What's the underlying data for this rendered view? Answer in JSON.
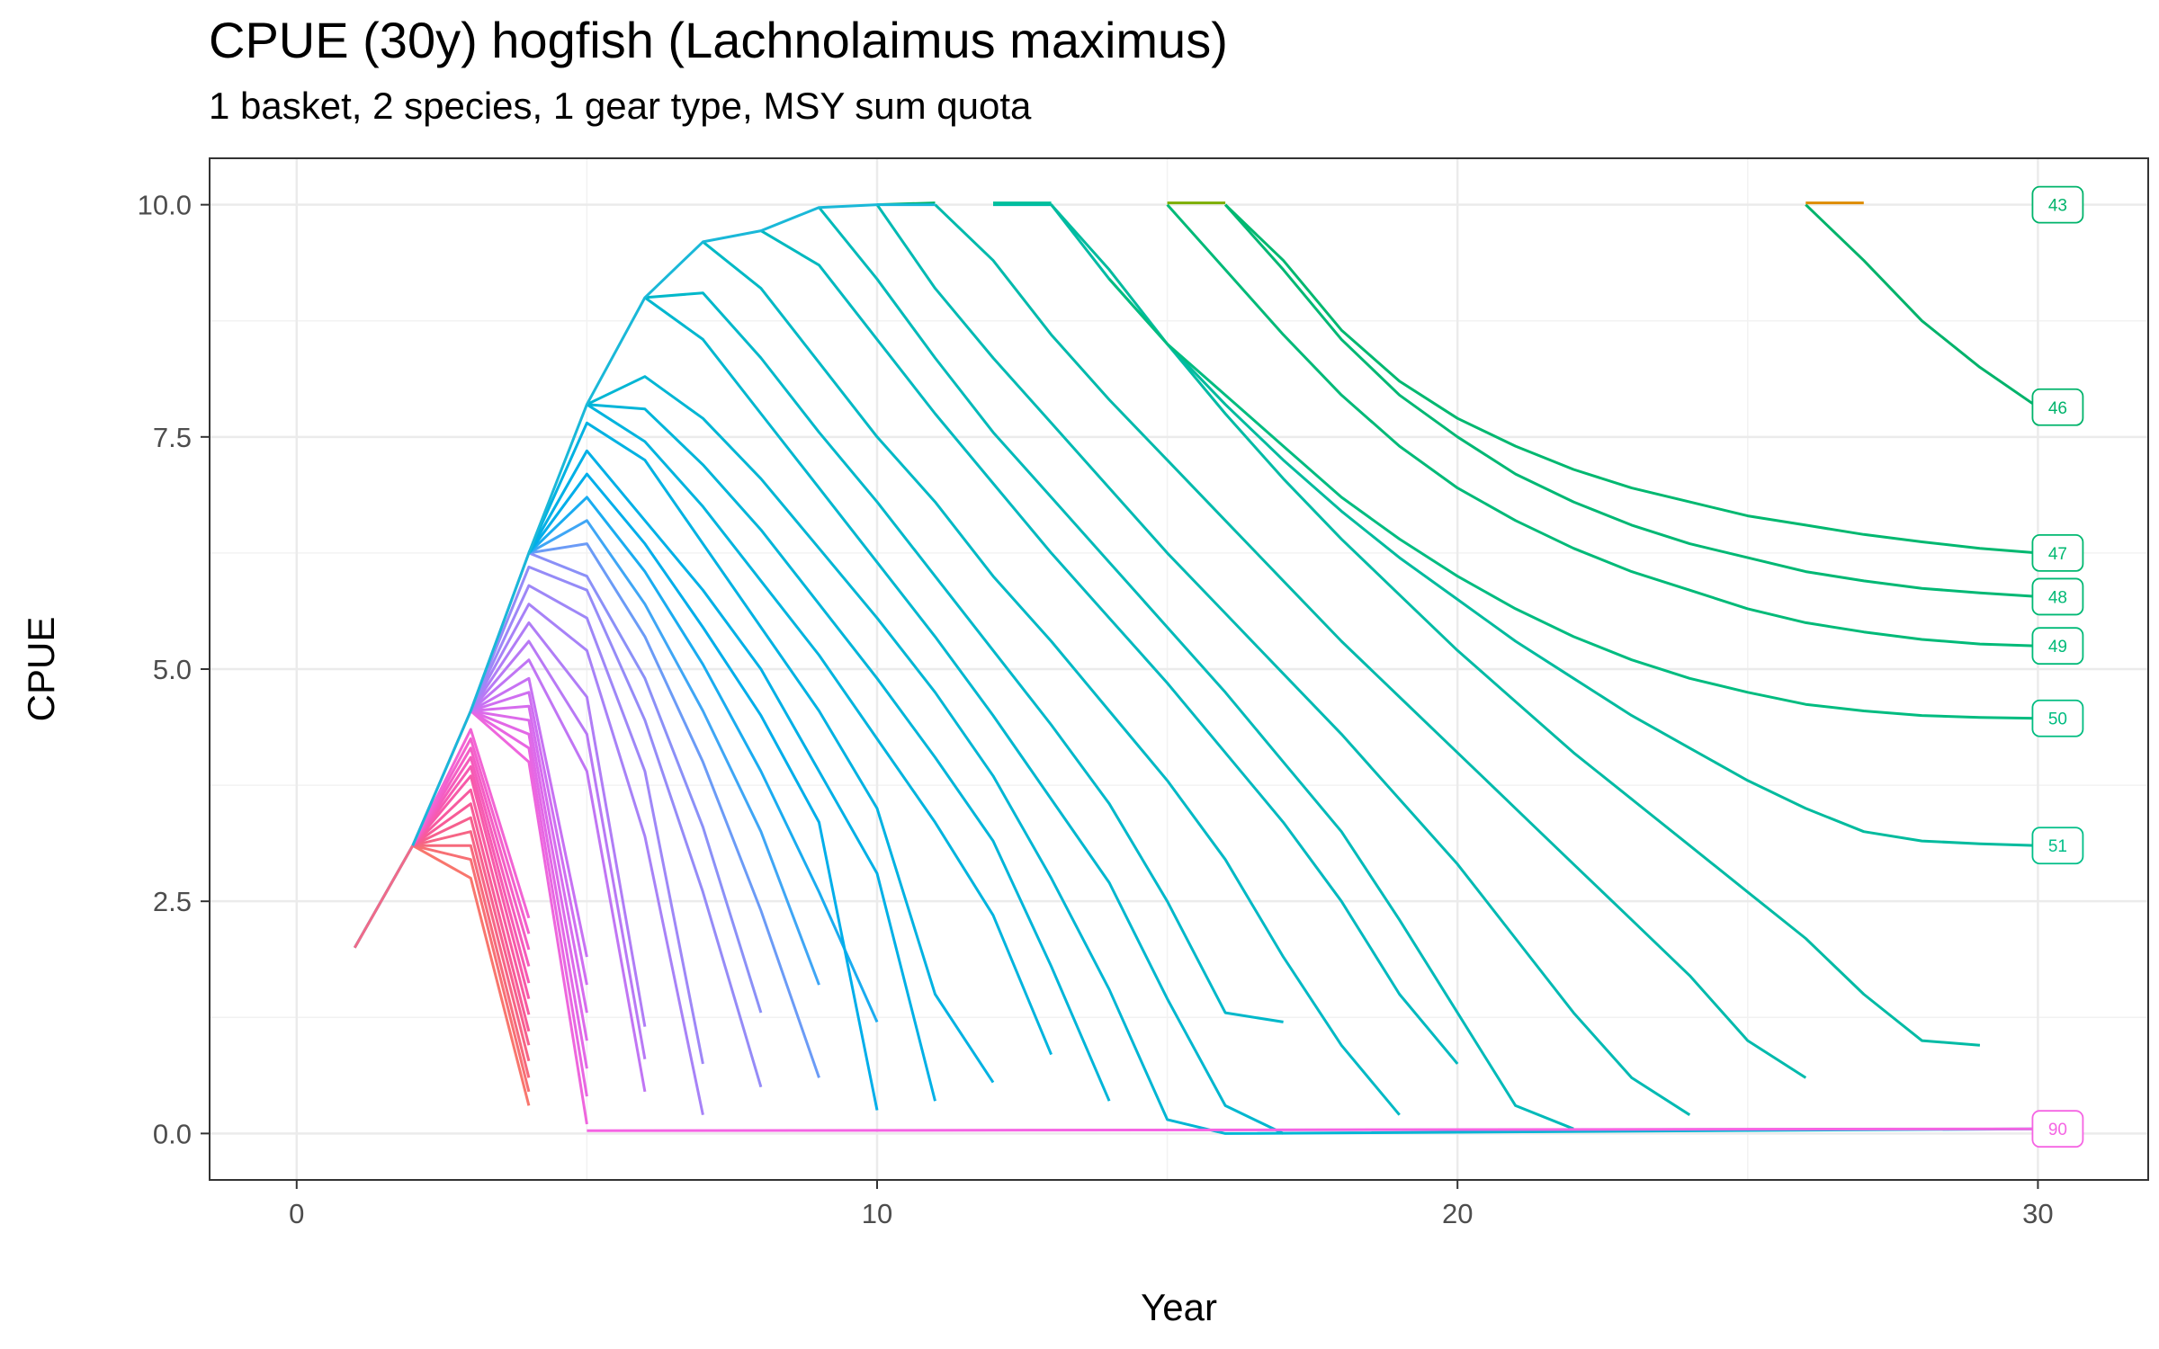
{
  "chart_data": {
    "type": "line",
    "title": "CPUE (30y) hogfish (Lachnolaimus maximus)",
    "subtitle": "1 basket, 2 species, 1 gear type, MSY sum quota",
    "xlabel": "Year",
    "ylabel": "CPUE",
    "xlim": [
      -1.5,
      31.9
    ],
    "ylim": [
      -0.5,
      10.5
    ],
    "xticks": [
      0,
      10,
      20,
      30
    ],
    "yticks": [
      0.0,
      2.5,
      5.0,
      7.5,
      10.0
    ],
    "ytick_labels": [
      "0.0",
      "2.5",
      "5.0",
      "7.5",
      "10.0"
    ],
    "grid": true,
    "legend": "none",
    "trunk": {
      "x": [
        1,
        2,
        3,
        4,
        5,
        6,
        7,
        8,
        9,
        10,
        11
      ],
      "y": [
        2.0,
        3.1,
        4.55,
        6.25,
        7.85,
        9.0,
        9.6,
        9.72,
        9.97,
        10.0,
        10.0
      ]
    },
    "end_labels": [
      {
        "label": "43",
        "x": 30,
        "y": 10.0,
        "color": "#00b36b"
      },
      {
        "label": "46",
        "x": 30,
        "y": 7.82,
        "color": "#00b36b"
      },
      {
        "label": "47",
        "x": 30,
        "y": 6.25,
        "color": "#00b870"
      },
      {
        "label": "48",
        "x": 30,
        "y": 5.78,
        "color": "#00b874"
      },
      {
        "label": "49",
        "x": 30,
        "y": 5.25,
        "color": "#00ba78"
      },
      {
        "label": "50",
        "x": 30,
        "y": 4.47,
        "color": "#00bc80"
      },
      {
        "label": "51",
        "x": 30,
        "y": 3.1,
        "color": "#00be88"
      },
      {
        "label": "90",
        "x": 30,
        "y": 0.05,
        "color": "#f564e3"
      }
    ],
    "series": [
      {
        "color": "#f8766d",
        "x": [
          1,
          2,
          3,
          4
        ],
        "y": [
          2.0,
          3.1,
          2.75,
          0.3
        ]
      },
      {
        "color": "#f77074",
        "x": [
          2,
          3,
          4
        ],
        "y": [
          3.1,
          2.95,
          0.45
        ]
      },
      {
        "color": "#f66a7c",
        "x": [
          2,
          3,
          4
        ],
        "y": [
          3.1,
          3.1,
          0.6
        ]
      },
      {
        "color": "#f66585",
        "x": [
          2,
          3,
          4
        ],
        "y": [
          3.1,
          3.25,
          0.78
        ]
      },
      {
        "color": "#f6608e",
        "x": [
          2,
          3,
          4
        ],
        "y": [
          3.1,
          3.4,
          0.95
        ]
      },
      {
        "color": "#f75c97",
        "x": [
          2,
          3,
          4
        ],
        "y": [
          3.1,
          3.55,
          1.1
        ]
      },
      {
        "color": "#f75ba0",
        "x": [
          2,
          3,
          4
        ],
        "y": [
          3.1,
          3.7,
          1.28
        ]
      },
      {
        "color": "#f75aa9",
        "x": [
          2,
          3,
          4
        ],
        "y": [
          3.1,
          3.85,
          1.45
        ]
      },
      {
        "color": "#f65bb2",
        "x": [
          2,
          3,
          4
        ],
        "y": [
          3.1,
          3.95,
          1.62
        ]
      },
      {
        "color": "#f55cbb",
        "x": [
          2,
          3,
          4
        ],
        "y": [
          3.1,
          4.05,
          1.8
        ]
      },
      {
        "color": "#f45ec4",
        "x": [
          2,
          3,
          4
        ],
        "y": [
          3.1,
          4.15,
          1.98
        ]
      },
      {
        "color": "#f361cc",
        "x": [
          2,
          3,
          4
        ],
        "y": [
          3.1,
          4.25,
          2.15
        ]
      },
      {
        "color": "#f264d4",
        "x": [
          2,
          3,
          4
        ],
        "y": [
          3.1,
          4.35,
          2.32
        ]
      },
      {
        "color": "#ee66dd",
        "x": [
          2,
          3,
          4,
          5
        ],
        "y": [
          3.1,
          4.55,
          4.0,
          0.1
        ]
      },
      {
        "color": "#e866e2",
        "x": [
          3,
          4,
          5
        ],
        "y": [
          4.55,
          4.15,
          0.4
        ]
      },
      {
        "color": "#e268e6",
        "x": [
          3,
          4,
          5
        ],
        "y": [
          4.55,
          4.3,
          0.7
        ]
      },
      {
        "color": "#dc6aea",
        "x": [
          3,
          4,
          5
        ],
        "y": [
          4.55,
          4.45,
          1.0
        ]
      },
      {
        "color": "#d66cee",
        "x": [
          3,
          4,
          5
        ],
        "y": [
          4.55,
          4.6,
          1.3
        ]
      },
      {
        "color": "#cf6ff1",
        "x": [
          3,
          4,
          5
        ],
        "y": [
          4.55,
          4.75,
          1.6
        ]
      },
      {
        "color": "#c772f3",
        "x": [
          3,
          4,
          5
        ],
        "y": [
          4.55,
          4.9,
          1.9
        ]
      },
      {
        "color": "#c075f4",
        "x": [
          3,
          4,
          5,
          6
        ],
        "y": [
          4.55,
          5.1,
          3.9,
          0.45
        ]
      },
      {
        "color": "#b879f5",
        "x": [
          3,
          4,
          5,
          6
        ],
        "y": [
          4.55,
          5.3,
          4.3,
          0.8
        ]
      },
      {
        "color": "#b07df6",
        "x": [
          3,
          4,
          5,
          6
        ],
        "y": [
          4.55,
          5.5,
          4.7,
          1.15
        ]
      },
      {
        "color": "#a782f7",
        "x": [
          3,
          4,
          5,
          6,
          7
        ],
        "y": [
          4.55,
          5.7,
          5.2,
          3.2,
          0.2
        ]
      },
      {
        "color": "#9e87f7",
        "x": [
          3,
          4,
          5,
          6,
          7
        ],
        "y": [
          4.55,
          5.9,
          5.55,
          3.9,
          0.75
        ]
      },
      {
        "color": "#958bf7",
        "x": [
          3,
          4,
          5,
          6,
          7,
          8
        ],
        "y": [
          4.55,
          6.1,
          5.85,
          4.45,
          2.6,
          0.5
        ]
      },
      {
        "color": "#8b90f7",
        "x": [
          3,
          4,
          5,
          6,
          7,
          8
        ],
        "y": [
          4.55,
          6.25,
          6.0,
          4.9,
          3.3,
          1.3
        ]
      },
      {
        "color": "#6b9bf6",
        "x": [
          4,
          5,
          6,
          7,
          8,
          9
        ],
        "y": [
          6.25,
          6.35,
          5.35,
          4.0,
          2.4,
          0.6
        ]
      },
      {
        "color": "#3fa6f5",
        "x": [
          4,
          5,
          6,
          7,
          8,
          9
        ],
        "y": [
          6.25,
          6.6,
          5.7,
          4.55,
          3.25,
          1.6
        ]
      },
      {
        "color": "#1aacf0",
        "x": [
          4,
          5,
          6,
          7,
          8,
          9,
          10
        ],
        "y": [
          6.25,
          6.85,
          6.05,
          5.05,
          3.9,
          2.6,
          1.2
        ]
      },
      {
        "color": "#00aeea",
        "x": [
          4,
          5,
          6,
          7,
          8,
          9,
          10
        ],
        "y": [
          6.25,
          7.1,
          6.35,
          5.45,
          4.5,
          3.35,
          0.25
        ]
      },
      {
        "color": "#00b0e6",
        "x": [
          4,
          5,
          6,
          7,
          8,
          9,
          10,
          11
        ],
        "y": [
          6.25,
          7.35,
          6.6,
          5.85,
          5.0,
          3.9,
          2.8,
          0.35
        ]
      },
      {
        "color": "#00b2e2",
        "x": [
          4,
          5,
          6,
          7,
          8,
          9,
          10,
          11,
          12
        ],
        "y": [
          6.25,
          7.65,
          7.25,
          6.35,
          5.45,
          4.55,
          3.5,
          1.5,
          0.55
        ]
      },
      {
        "color": "#00b4de",
        "x": [
          5,
          6,
          7,
          8,
          9,
          10,
          11,
          12,
          13
        ],
        "y": [
          7.85,
          7.45,
          6.75,
          5.95,
          5.15,
          4.25,
          3.35,
          2.35,
          0.85
        ]
      },
      {
        "color": "#00b5d9",
        "x": [
          5,
          6,
          7,
          8,
          9,
          10,
          11,
          12,
          13,
          14
        ],
        "y": [
          7.85,
          7.8,
          7.2,
          6.5,
          5.7,
          4.9,
          4.05,
          3.15,
          1.8,
          0.35
        ]
      },
      {
        "color": "#00b6d4",
        "x": [
          5,
          6,
          7,
          8,
          9,
          10,
          11,
          12,
          13,
          14,
          15,
          16,
          30
        ],
        "y": [
          7.85,
          8.15,
          7.7,
          7.05,
          6.3,
          5.55,
          4.75,
          3.85,
          2.75,
          1.55,
          0.15,
          0.0,
          0.05
        ]
      },
      {
        "color": "#00b7cf",
        "x": [
          6,
          7,
          8,
          9,
          10,
          11,
          12,
          13,
          14,
          15,
          16,
          17
        ],
        "y": [
          9.0,
          8.55,
          7.75,
          6.95,
          6.15,
          5.35,
          4.5,
          3.6,
          2.7,
          1.45,
          0.3,
          0.0
        ]
      },
      {
        "color": "#00b8ca",
        "x": [
          6,
          7,
          8,
          9,
          10,
          11,
          12,
          13,
          14,
          15,
          16,
          17
        ],
        "y": [
          9.0,
          9.05,
          8.35,
          7.55,
          6.8,
          6.0,
          5.2,
          4.4,
          3.55,
          2.5,
          1.3,
          1.2
        ]
      },
      {
        "color": "#00b9c5",
        "x": [
          7,
          8,
          9,
          10,
          11,
          12,
          13,
          14,
          15,
          16,
          17,
          18,
          19
        ],
        "y": [
          9.6,
          9.1,
          8.3,
          7.5,
          6.8,
          6.0,
          5.3,
          4.55,
          3.8,
          2.95,
          1.9,
          0.95,
          0.2
        ]
      },
      {
        "color": "#00b9bf",
        "x": [
          8,
          9,
          10,
          11,
          12,
          13,
          14,
          15,
          16,
          17,
          18,
          19,
          20
        ],
        "y": [
          9.72,
          9.35,
          8.55,
          7.75,
          7.0,
          6.25,
          5.55,
          4.85,
          4.1,
          3.35,
          2.5,
          1.5,
          0.75
        ]
      },
      {
        "color": "#00bab9",
        "x": [
          9,
          10,
          11,
          12,
          13,
          14,
          15,
          16,
          17,
          18,
          19,
          20,
          21,
          22
        ],
        "y": [
          9.97,
          9.2,
          8.35,
          7.55,
          6.85,
          6.15,
          5.45,
          4.75,
          4.0,
          3.25,
          2.3,
          1.3,
          0.3,
          0.05
        ]
      },
      {
        "color": "#00bab3",
        "x": [
          10,
          11,
          12,
          13,
          14,
          15,
          16,
          17,
          18,
          19,
          20,
          21,
          22,
          23,
          24
        ],
        "y": [
          10.0,
          9.1,
          8.35,
          7.65,
          6.95,
          6.25,
          5.6,
          4.95,
          4.3,
          3.6,
          2.9,
          2.1,
          1.3,
          0.6,
          0.2
        ]
      },
      {
        "color": "#00baac",
        "x": [
          11,
          12,
          13,
          14,
          15,
          16,
          17,
          18,
          19,
          20,
          21,
          22,
          23,
          24,
          25,
          26
        ],
        "y": [
          10.0,
          9.4,
          8.6,
          7.9,
          7.25,
          6.6,
          5.95,
          5.3,
          4.7,
          4.1,
          3.5,
          2.9,
          2.3,
          1.7,
          1.0,
          0.6
        ]
      },
      {
        "color": "#00bba5",
        "x": [
          12,
          13,
          14,
          15,
          16,
          17,
          18,
          19,
          20,
          21,
          22,
          23,
          24,
          25,
          26,
          27,
          28,
          29
        ],
        "y": [
          10.0,
          10.0,
          9.2,
          8.5,
          7.75,
          7.05,
          6.4,
          5.8,
          5.2,
          4.65,
          4.1,
          3.6,
          3.1,
          2.6,
          2.1,
          1.5,
          1.0,
          0.95
        ]
      },
      {
        "color": "#00bb9e",
        "x": [
          13,
          14,
          15,
          16,
          17,
          18,
          19,
          20,
          21,
          22,
          23,
          24,
          25,
          26,
          27,
          28,
          29,
          30
        ],
        "y": [
          10.0,
          9.3,
          8.5,
          7.85,
          7.25,
          6.7,
          6.2,
          5.75,
          5.3,
          4.9,
          4.5,
          4.15,
          3.8,
          3.5,
          3.25,
          3.15,
          3.12,
          3.1
        ]
      },
      {
        "color": "#00bc80",
        "x": [
          14,
          15,
          16,
          17,
          18,
          19,
          20,
          21,
          22,
          23,
          24,
          25,
          26,
          27,
          28,
          29,
          30
        ],
        "y": [
          9.2,
          8.5,
          7.95,
          7.4,
          6.85,
          6.4,
          6.0,
          5.65,
          5.35,
          5.1,
          4.9,
          4.75,
          4.62,
          4.55,
          4.5,
          4.48,
          4.47
        ]
      },
      {
        "color": "#00ba78",
        "x": [
          15,
          16,
          17,
          18,
          19,
          20,
          21,
          22,
          23,
          24,
          25,
          26,
          27,
          28,
          29,
          30
        ],
        "y": [
          10.0,
          9.3,
          8.6,
          7.95,
          7.4,
          6.95,
          6.6,
          6.3,
          6.05,
          5.85,
          5.65,
          5.5,
          5.4,
          5.32,
          5.27,
          5.25
        ]
      },
      {
        "color": "#00b874",
        "x": [
          16,
          17,
          18,
          19,
          20,
          21,
          22,
          23,
          24,
          25,
          26,
          27,
          28,
          29,
          30
        ],
        "y": [
          10.0,
          9.3,
          8.55,
          7.95,
          7.5,
          7.1,
          6.8,
          6.55,
          6.35,
          6.2,
          6.05,
          5.95,
          5.87,
          5.82,
          5.78
        ]
      },
      {
        "color": "#00b870",
        "x": [
          16,
          17,
          18,
          19,
          20,
          21,
          22,
          23,
          24,
          25,
          26,
          27,
          28,
          29,
          30
        ],
        "y": [
          10.0,
          9.4,
          8.65,
          8.1,
          7.7,
          7.4,
          7.15,
          6.95,
          6.8,
          6.65,
          6.55,
          6.45,
          6.37,
          6.3,
          6.25
        ]
      },
      {
        "color": "#00b36b",
        "x": [
          26,
          27,
          28,
          29,
          30
        ],
        "y": [
          10.0,
          9.4,
          8.75,
          8.25,
          7.82
        ]
      },
      {
        "color": "#00b36b",
        "x": [
          10,
          11
        ],
        "y": [
          10.0,
          10.02
        ]
      },
      {
        "color": "#00bf9a",
        "x": [
          12,
          13
        ],
        "y": [
          10.02,
          10.02
        ]
      },
      {
        "color": "#7cae00",
        "x": [
          15,
          16
        ],
        "y": [
          10.02,
          10.02
        ]
      },
      {
        "color": "#de8c00",
        "x": [
          26,
          27
        ],
        "y": [
          10.02,
          10.02
        ]
      },
      {
        "color": "#f564e3",
        "x": [
          5,
          30
        ],
        "y": [
          0.03,
          0.05
        ]
      }
    ]
  }
}
